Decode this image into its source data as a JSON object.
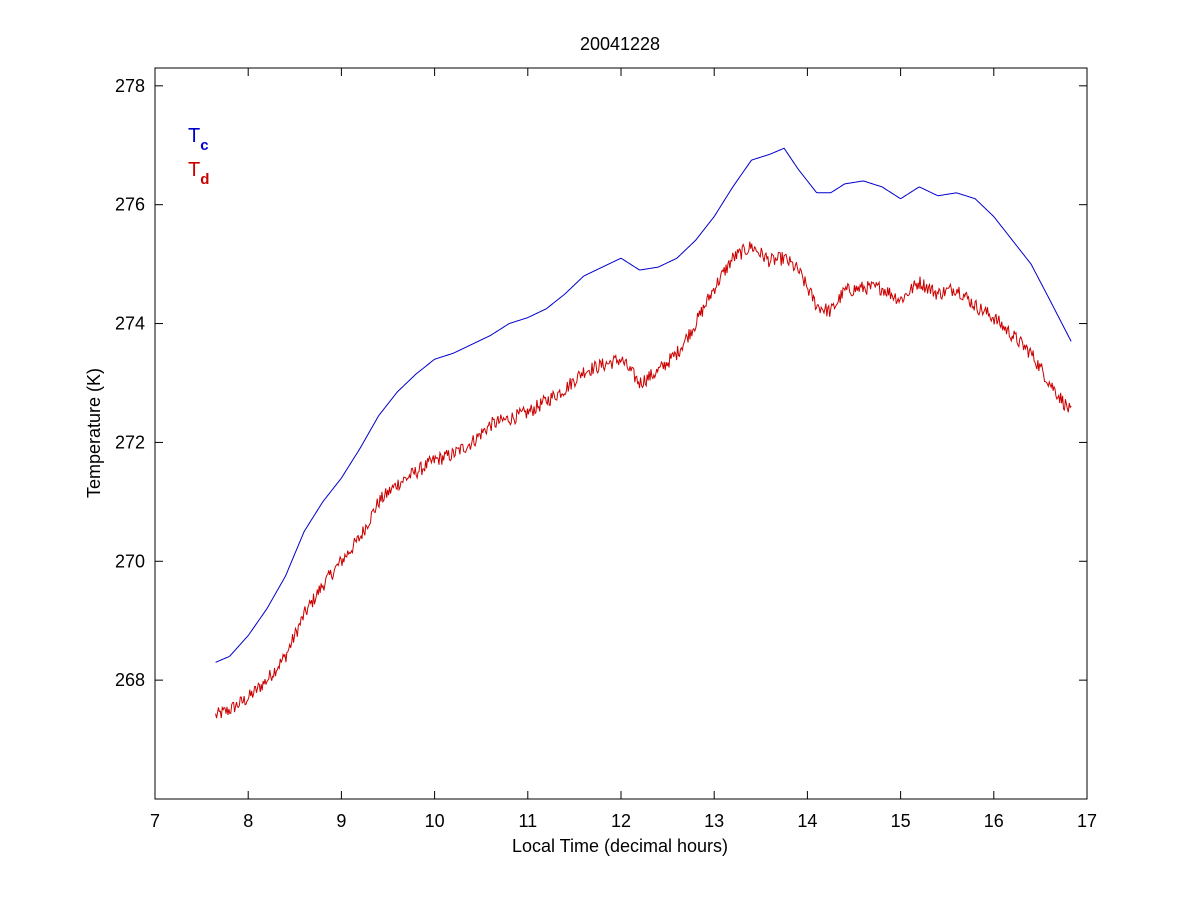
{
  "chart_data": {
    "type": "line",
    "title": "20041228",
    "xlabel": "Local Time (decimal hours)",
    "ylabel": "Temperature (K)",
    "xlim": [
      7,
      17
    ],
    "ylim": [
      266,
      278.3
    ],
    "xticks": [
      7,
      8,
      9,
      10,
      11,
      12,
      13,
      14,
      15,
      16,
      17
    ],
    "yticks": [
      268,
      270,
      272,
      274,
      276,
      278
    ],
    "grid": false,
    "legend_position": "top-left",
    "series": [
      {
        "name": "T",
        "subscript": "c",
        "color": "#0000cc",
        "noise": 0,
        "x": [
          7.65,
          7.8,
          8.0,
          8.2,
          8.4,
          8.6,
          8.8,
          9.0,
          9.2,
          9.4,
          9.6,
          9.8,
          10.0,
          10.2,
          10.4,
          10.6,
          10.8,
          11.0,
          11.2,
          11.4,
          11.6,
          11.8,
          12.0,
          12.2,
          12.4,
          12.6,
          12.8,
          13.0,
          13.2,
          13.4,
          13.6,
          13.75,
          13.9,
          14.1,
          14.25,
          14.4,
          14.6,
          14.8,
          15.0,
          15.2,
          15.4,
          15.6,
          15.8,
          16.0,
          16.2,
          16.4,
          16.6,
          16.83
        ],
        "y": [
          268.3,
          268.4,
          268.75,
          269.2,
          269.75,
          270.5,
          271.0,
          271.4,
          271.9,
          272.45,
          272.85,
          273.15,
          273.4,
          273.5,
          273.65,
          273.8,
          274.0,
          274.1,
          274.25,
          274.5,
          274.8,
          274.95,
          275.1,
          274.9,
          274.95,
          275.1,
          275.4,
          275.8,
          276.3,
          276.75,
          276.85,
          276.95,
          276.6,
          276.2,
          276.2,
          276.35,
          276.4,
          276.3,
          276.1,
          276.3,
          276.15,
          276.2,
          276.1,
          275.8,
          275.4,
          275.0,
          274.4,
          273.7
        ]
      },
      {
        "name": "T",
        "subscript": "d",
        "color": "#cc0000",
        "noise": 0.12,
        "x": [
          7.65,
          7.8,
          8.0,
          8.2,
          8.4,
          8.6,
          8.8,
          9.0,
          9.2,
          9.4,
          9.6,
          9.8,
          10.0,
          10.2,
          10.4,
          10.6,
          10.8,
          11.0,
          11.2,
          11.4,
          11.6,
          11.8,
          12.0,
          12.2,
          12.4,
          12.6,
          12.8,
          13.0,
          13.2,
          13.4,
          13.6,
          13.75,
          13.9,
          14.1,
          14.25,
          14.4,
          14.6,
          14.8,
          15.0,
          15.2,
          15.4,
          15.6,
          15.8,
          16.0,
          16.2,
          16.4,
          16.6,
          16.83
        ],
        "y": [
          267.4,
          267.5,
          267.7,
          268.0,
          268.4,
          269.1,
          269.6,
          270.0,
          270.4,
          271.0,
          271.3,
          271.5,
          271.7,
          271.8,
          272.0,
          272.3,
          272.4,
          272.5,
          272.7,
          272.9,
          273.2,
          273.3,
          273.4,
          273.0,
          273.2,
          273.5,
          274.0,
          274.6,
          275.1,
          275.3,
          275.05,
          275.1,
          274.9,
          274.3,
          274.2,
          274.55,
          274.6,
          274.6,
          274.4,
          274.7,
          274.5,
          274.6,
          274.3,
          274.1,
          273.8,
          273.5,
          273.0,
          272.5
        ]
      }
    ]
  }
}
